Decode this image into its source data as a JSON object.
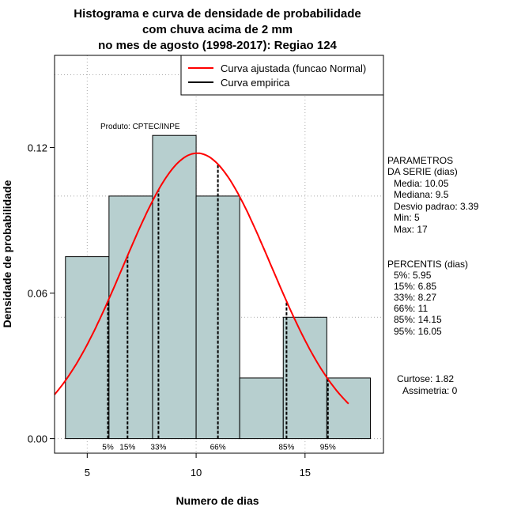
{
  "chart_data": {
    "type": "bar",
    "title": [
      "Histograma e curva de densidade de probabilidade",
      "com chuva acima de 2 mm",
      "no mes de agosto (1998-2017): Regiao 124"
    ],
    "xlabel": "Numero de dias",
    "ylabel": "Densidade de probabilidade",
    "xlim": [
      3.5,
      18.6
    ],
    "ylim": [
      -0.006,
      0.158
    ],
    "x_ticks": [
      5,
      10,
      15
    ],
    "y_ticks": [
      0.0,
      0.06,
      0.12
    ],
    "y_tick_labels": [
      "0.00",
      "0.06",
      "0.12"
    ],
    "grid_x": [
      5,
      10,
      15
    ],
    "grid_y": [
      0.0,
      0.05,
      0.1,
      0.15
    ],
    "bins": [
      {
        "start": 4,
        "end": 6,
        "density": 0.075
      },
      {
        "start": 6,
        "end": 8,
        "density": 0.1
      },
      {
        "start": 8,
        "end": 10,
        "density": 0.125
      },
      {
        "start": 10,
        "end": 12,
        "density": 0.1
      },
      {
        "start": 12,
        "end": 14,
        "density": 0.025
      },
      {
        "start": 14,
        "end": 16,
        "density": 0.05
      },
      {
        "start": 16,
        "end": 18,
        "density": 0.025
      }
    ],
    "bar_color": "#b7cfcf",
    "curve_color": "#ff0000",
    "fitted_curve": {
      "mean": 10.05,
      "sd": 3.39,
      "x_range": [
        3.5,
        17
      ]
    },
    "legend": {
      "position": "top-right",
      "entries": [
        {
          "label": "Curva ajustada (funcao Normal)",
          "color": "#ff0000"
        },
        {
          "label": "Curva empirica",
          "color": "#000000"
        }
      ]
    },
    "percentiles": [
      {
        "label": "5%",
        "value": 5.95
      },
      {
        "label": "15%",
        "value": 6.85
      },
      {
        "label": "33%",
        "value": 8.27
      },
      {
        "label": "66%",
        "value": 11
      },
      {
        "label": "85%",
        "value": 14.15
      },
      {
        "label": "95%",
        "value": 16.05
      }
    ],
    "product_label": "Produto: CPTEC/INPE"
  },
  "parameters": {
    "heading": [
      "PARAMETROS",
      "DA SERIE (dias)"
    ],
    "lines": [
      "Media: 10.05",
      "Mediana: 9.5",
      "Desvio padrao: 3.39",
      "Min: 5",
      "Max: 17"
    ]
  },
  "percentis_block": {
    "heading": "PERCENTIS (dias)",
    "lines": [
      "5%: 5.95",
      "15%: 6.85",
      "33%: 8.27",
      "66%: 11",
      "85%: 14.15",
      "95%: 16.05"
    ]
  },
  "shape_stats": {
    "lines": [
      "Curtose: 1.82",
      "Assimetria: 0"
    ]
  }
}
